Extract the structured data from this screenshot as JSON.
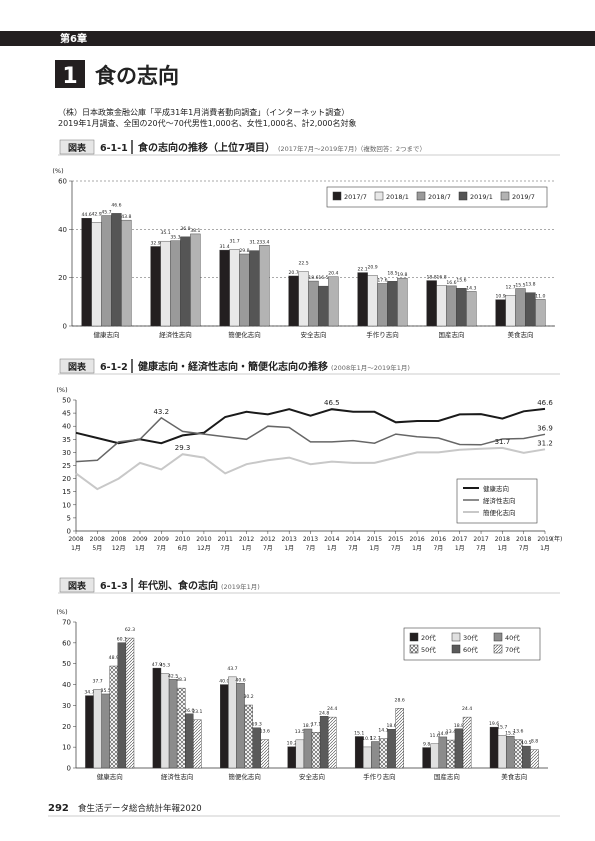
{
  "header": {
    "chapter": "第6章",
    "section_number": "1",
    "section_title": "食の志向"
  },
  "source": {
    "line1": "（株）日本政策金融公庫「平成31年1月消費者動向調査」（インターネット調査）",
    "line2": "2019年1月調査、全国の20代～70代男性1,000名、女性1,000名、計2,000名対象"
  },
  "footer": {
    "page": "292",
    "book": "食生活データ総合統計年報2020"
  },
  "chart_data": [
    {
      "type": "bar",
      "figure_label": "図表",
      "figure_number": "6-1-1",
      "title": "食の志向の推移（上位7項目）",
      "subtitle": "(2017年7月～2019年7月)（複数回答：2つまで）",
      "y_label": "(%)",
      "categories": [
        "健康志向",
        "経済性志向",
        "簡便化志向",
        "安全志向",
        "手作り志向",
        "国産志向",
        "美食志向"
      ],
      "series": [
        {
          "name": "2017/7",
          "color": "#231f20",
          "values": [
            44.6,
            32.9,
            31.4,
            20.7,
            22.1,
            18.8,
            10.9
          ],
          "value_labels": [
            "44.6",
            "32.9",
            "31.4",
            "20.7",
            "22.1",
            "18.8",
            "10.9"
          ]
        },
        {
          "name": "2018/1",
          "color": "#e8e8e8",
          "values": [
            42.9,
            35.1,
            31.7,
            22.5,
            20.9,
            16.8,
            12.7
          ],
          "value_labels": [
            "42.9",
            "35.1",
            "31.7",
            "22.5",
            "20.9",
            "16.8",
            "12.7"
          ]
        },
        {
          "name": "2018/7",
          "color": "#9a9a9a",
          "values": [
            45.7,
            35.3,
            29.8,
            18.6,
            17.6,
            16.6,
            15.5
          ],
          "value_labels": [
            "45.7",
            "35.3",
            "29.8",
            "18.6",
            "17.6",
            "16.6",
            "15.5"
          ]
        },
        {
          "name": "2019/1",
          "color": "#555555",
          "values": [
            46.6,
            36.9,
            31.2,
            16.5,
            18.5,
            15.6,
            13.8
          ],
          "value_labels": [
            "46.6",
            "36.9",
            "31.2",
            "16.5",
            "18.5",
            "15.6",
            "13.8"
          ]
        },
        {
          "name": "2019/7",
          "color": "#b3b3b3",
          "values": [
            43.8,
            38.1,
            33.4,
            20.4,
            19.8,
            14.3,
            11.0
          ],
          "value_labels": [
            "43.8",
            "38.1",
            "33.4",
            "20.4",
            "19.8",
            "14.3",
            "11.0"
          ]
        }
      ],
      "ylim": [
        0,
        60
      ],
      "yticks": [
        0,
        20,
        40,
        60
      ],
      "grid": true,
      "legend": "upper right"
    },
    {
      "type": "line",
      "figure_label": "図表",
      "figure_number": "6-1-2",
      "title": "健康志向・経済性志向・簡便化志向の推移",
      "subtitle": "(2008年1月～2019年1月)",
      "y_label": "(%)",
      "x_unit_label": "(年)",
      "categories": [
        [
          "2008",
          "1月"
        ],
        [
          "2008",
          "5月"
        ],
        [
          "2008",
          "12月"
        ],
        [
          "2009",
          "1月"
        ],
        [
          "2009",
          "7月"
        ],
        [
          "2010",
          "6月"
        ],
        [
          "2010",
          "12月"
        ],
        [
          "2011",
          "7月"
        ],
        [
          "2012",
          "1月"
        ],
        [
          "2012",
          "7月"
        ],
        [
          "2013",
          "1月"
        ],
        [
          "2013",
          "7月"
        ],
        [
          "2014",
          "1月"
        ],
        [
          "2014",
          "7月"
        ],
        [
          "2015",
          "1月"
        ],
        [
          "2015",
          "7月"
        ],
        [
          "2016",
          "1月"
        ],
        [
          "2016",
          "7月"
        ],
        [
          "2017",
          "1月"
        ],
        [
          "2017",
          "7月"
        ],
        [
          "2018",
          "1月"
        ],
        [
          "2018",
          "7月"
        ],
        [
          "2019",
          "1月"
        ]
      ],
      "series": [
        {
          "name": "健康志向",
          "color": "#1a1a1a",
          "width": 2,
          "values": [
            37.5,
            35.5,
            33.5,
            35.0,
            33.5,
            36.5,
            37.5,
            43.5,
            45.5,
            44.5,
            46.5,
            44.0,
            46.5,
            45.5,
            45.5,
            41.5,
            42.0,
            42.0,
            44.5,
            44.6,
            42.9,
            45.7,
            46.6
          ],
          "labeled": [
            12,
            22
          ]
        },
        {
          "name": "経済性志向",
          "color": "#666666",
          "width": 1.5,
          "values": [
            26.5,
            27.0,
            34.0,
            35.0,
            43.2,
            38.0,
            37.0,
            36.0,
            35.0,
            40.0,
            39.5,
            34.0,
            34.0,
            34.5,
            33.5,
            37.0,
            36.0,
            35.5,
            33.0,
            32.9,
            35.1,
            35.3,
            36.9
          ],
          "labeled": [
            4,
            22
          ]
        },
        {
          "name": "簡便化志向",
          "color": "#c8c8c8",
          "width": 2,
          "values": [
            22.0,
            16.0,
            20.0,
            26.0,
            23.5,
            29.3,
            28.0,
            22.0,
            25.5,
            27.0,
            28.0,
            25.5,
            26.5,
            26.0,
            26.0,
            28.0,
            30.0,
            30.0,
            31.0,
            31.4,
            31.7,
            29.8,
            31.2
          ],
          "labeled": [
            5,
            20,
            22
          ]
        }
      ],
      "ylim": [
        0,
        50
      ],
      "yticks": [
        0,
        5,
        10,
        15,
        20,
        25,
        30,
        35,
        40,
        45,
        50
      ],
      "grid": false,
      "legend": "lower right"
    },
    {
      "type": "bar",
      "figure_label": "図表",
      "figure_number": "6-1-3",
      "title": "年代別、食の志向",
      "subtitle": "(2019年1月)",
      "y_label": "(%)",
      "categories": [
        "健康志向",
        "経済性志向",
        "簡便化志向",
        "安全志向",
        "手作り志向",
        "国産志向",
        "美食志向"
      ],
      "series": [
        {
          "name": "20代",
          "color": "#231f20",
          "values": [
            34.7,
            47.9,
            40.0,
            10.2,
            15.1,
            9.8,
            19.6
          ],
          "value_labels": [
            "34.7",
            "47.9",
            "40.0",
            "10.2",
            "15.1",
            "9.8",
            "19.6"
          ]
        },
        {
          "name": "30代",
          "color": "#e0e0e0",
          "values": [
            37.7,
            45.3,
            43.7,
            13.5,
            10.1,
            11.6,
            15.7
          ],
          "value_labels": [
            "37.7",
            "45.3",
            "43.7",
            "13.5",
            "10.1",
            "11.6",
            "15.7"
          ]
        },
        {
          "name": "40代",
          "color": "#8c8c8c",
          "values": [
            35.5,
            42.5,
            40.6,
            18.7,
            12.7,
            14.9,
            15.2
          ],
          "value_labels": [
            "35.5",
            "42.5",
            "40.6",
            "18.7",
            "12.7",
            "14.9",
            "15.2"
          ]
        },
        {
          "name": "50代",
          "color": "#ffffff",
          "pattern": "crosshatch",
          "values": [
            48.9,
            38.3,
            30.2,
            17.1,
            14.1,
            13.4,
            13.6
          ],
          "value_labels": [
            "48.9",
            "38.3",
            "30.2",
            "17.1",
            "14.1",
            "13.4",
            "13.6"
          ]
        },
        {
          "name": "60代",
          "color": "#5a5a5a",
          "values": [
            60.1,
            26.0,
            19.3,
            24.8,
            18.6,
            18.8,
            10.5
          ],
          "value_labels": [
            "60.1",
            "26.0",
            "19.3",
            "24.8",
            "18.6",
            "18.8",
            "10.5"
          ]
        },
        {
          "name": "70代",
          "color": "#ffffff",
          "pattern": "diagonal",
          "values": [
            62.3,
            23.1,
            13.6,
            24.4,
            28.6,
            24.4,
            8.8
          ],
          "value_labels": [
            "62.3",
            "23.1",
            "13.6",
            "24.4",
            "28.6",
            "24.4",
            "8.8"
          ]
        }
      ],
      "ylim": [
        0,
        70
      ],
      "yticks": [
        0,
        10,
        20,
        30,
        40,
        50,
        60,
        70
      ],
      "grid": false,
      "legend": "upper right"
    }
  ]
}
